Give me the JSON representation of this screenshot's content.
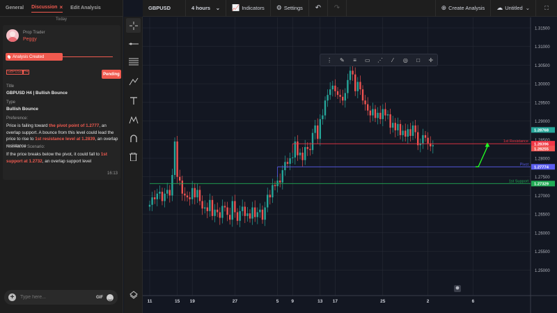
{
  "tabs": {
    "general": "General",
    "discussion": "Discussion",
    "close": "×",
    "edit": "Edit Analysis"
  },
  "today": "Today",
  "post": {
    "role": "Prop Trader",
    "user": "Peggy",
    "created": "Analysis Created",
    "badge_pair": "GBPUSD",
    "badge_tf": "H4",
    "status": "Pending",
    "title_label": "Title",
    "title": "GBPUSD H4 | Bullish Bounce",
    "type_label": "Type",
    "type": "Bullish Bounce",
    "pref_label": "Preference:",
    "pref_1": "Price is failing toward ",
    "pref_hl1": "the pivot point of 1.2777",
    "pref_2": ", an overlap support. A bounce from this level could lead the price to rise to ",
    "pref_hl2": "1st resistance level at 1.2839",
    "pref_3": ", an overlap resistance",
    "alt_label": "Alternative Scenario:",
    "alt_1": "If the price breaks below the pivot, it could fall  to ",
    "alt_hl": "1st support at 1.2732",
    "alt_2": ", an overlap  support  level",
    "time": "16:13"
  },
  "composer": {
    "placeholder": "Type here...",
    "gif": "GIF"
  },
  "topbar": {
    "symbol": "GBPUSD",
    "timeframe": "4 hours",
    "indicators": "Indicators",
    "settings": "Settings",
    "create": "Create Analysis",
    "untitled": "Untitled"
  },
  "icons": {
    "tools": [
      "crosshair-icon",
      "horizontal-line-icon",
      "fib-icon",
      "brush-icon",
      "text-icon",
      "pattern-icon",
      "magnet-icon",
      "trash-icon",
      "layers-icon"
    ],
    "drawbar": [
      "drag-handle-icon",
      "pencil-icon",
      "line-style-icon",
      "fill-icon",
      "dotted-line-icon",
      "line-width-icon",
      "visibility-icon",
      "box-icon",
      "crosshair-small-icon"
    ]
  },
  "colors": {
    "accent": "#f05a4f",
    "up": "#26a69a",
    "down": "#ef5350",
    "resistance": "#f23645",
    "pivot": "#5b5ef0",
    "support": "#22ab55",
    "arrow": "#22ff22",
    "background": "#131722"
  },
  "chart_data": {
    "type": "candlestick",
    "symbol": "GBPUSD",
    "ylim": [
      1.245,
      1.315
    ],
    "y_ticks": [
      "1.31500",
      "1.31000",
      "1.30500",
      "1.30000",
      "1.29500",
      "1.29000",
      "1.28500",
      "1.28000",
      "1.27500",
      "1.27000",
      "1.26500",
      "1.26000",
      "1.25500",
      "1.25000"
    ],
    "x_ticks": [
      "11",
      "15",
      "19",
      "27",
      "5",
      "9",
      "13",
      "17",
      "25",
      "2",
      "6"
    ],
    "x_tick_index": [
      0,
      11,
      17,
      34,
      51,
      57,
      68,
      74,
      93,
      111,
      129
    ],
    "levels": [
      {
        "name": "1st Resistance",
        "value": 1.2839,
        "label": "1.28396"
      },
      {
        "name": "Pivot",
        "value": 1.2777,
        "label": "1.27774"
      },
      {
        "name": "1st Support",
        "value": 1.2732,
        "label": "1.27329"
      }
    ],
    "price_tags": [
      {
        "value": 1.2876,
        "label": "1.28768",
        "color": "#26a69a"
      },
      {
        "value": 1.2826,
        "label": "1.28255",
        "color": "#ef5350"
      }
    ],
    "close": [
      1.2675,
      1.2695,
      1.269,
      1.2705,
      1.271,
      1.2685,
      1.2705,
      1.2715,
      1.27,
      1.2755,
      1.2845,
      1.275,
      1.274,
      1.2705,
      1.27,
      1.2695,
      1.269,
      1.272,
      1.2695,
      1.2715,
      1.2685,
      1.2665,
      1.2668,
      1.2658,
      1.2688,
      1.2645,
      1.2662,
      1.2655,
      1.264,
      1.2672,
      1.2668,
      1.2648,
      1.2635,
      1.2685,
      1.2655,
      1.2632,
      1.2658,
      1.267,
      1.2645,
      1.2652,
      1.2638,
      1.2668,
      1.2642,
      1.2655,
      1.2662,
      1.2635,
      1.2668,
      1.2702,
      1.2695,
      1.2728,
      1.2725,
      1.274,
      1.2735,
      1.2768,
      1.279,
      1.2785,
      1.28,
      1.2802,
      1.2845,
      1.2808,
      1.2815,
      1.2795,
      1.283,
      1.2825,
      1.2822,
      1.2868,
      1.2888,
      1.2852,
      1.2905,
      1.2915,
      1.2955,
      1.297,
      1.2985,
      1.2995,
      1.298,
      1.297,
      1.2965,
      1.2955,
      1.2975,
      1.301,
      1.3035,
      1.3025,
      1.298,
      1.3005,
      1.2985,
      1.2955,
      1.2945,
      1.2928,
      1.2915,
      1.2932,
      1.2908,
      1.2922,
      1.2905,
      1.2932,
      1.2915,
      1.2918,
      1.2882,
      1.2895,
      1.2875,
      1.2892,
      1.2862,
      1.2874,
      1.2858,
      1.2878,
      1.286,
      1.2888,
      1.287,
      1.2835,
      1.284,
      1.2862,
      1.2855,
      1.284,
      1.2832,
      1.2835
    ],
    "open_first": 1.267
  }
}
